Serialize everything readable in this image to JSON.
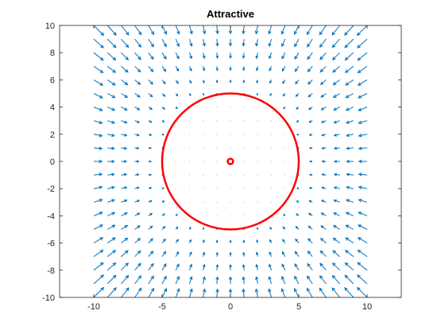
{
  "chart_data": {
    "type": "quiver",
    "title": "Attractive",
    "xlabel": "",
    "ylabel": "",
    "xlim": [
      -12.5,
      12.5
    ],
    "ylim": [
      -10,
      10
    ],
    "x_ticks": [
      -10,
      -5,
      0,
      5,
      10
    ],
    "y_ticks": [
      -10,
      -8,
      -6,
      -4,
      -2,
      0,
      2,
      4,
      6,
      8,
      10
    ],
    "grid": false,
    "box": true,
    "vector_field": {
      "x_range": [
        -10,
        10
      ],
      "y_range": [
        -10,
        10
      ],
      "spacing": 1,
      "direction": "toward origin",
      "inactive_radius": 5,
      "color": "#0072BD"
    },
    "circles": [
      {
        "name": "",
        "center": [
          0,
          0
        ],
        "radius": 5,
        "color": "#FF0000"
      },
      {
        "name": "",
        "center": [
          0,
          0
        ],
        "radius": 0.2,
        "color": "#FF0000"
      }
    ]
  }
}
